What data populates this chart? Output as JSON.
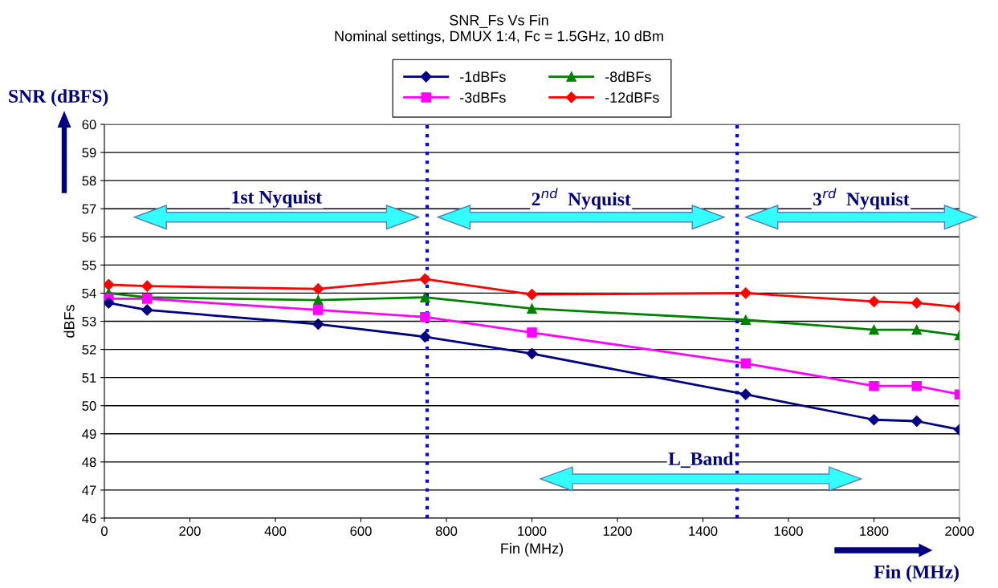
{
  "chart_data": {
    "type": "line",
    "title": "SNR_Fs Vs Fin",
    "subtitle": "Nominal settings, DMUX 1:4, Fc = 1.5GHz, 10 dBm",
    "xlabel": "Fin (MHz)",
    "ylabel": "dBFs",
    "x": [
      10,
      100,
      500,
      750,
      1000,
      1500,
      1800,
      1900,
      2000
    ],
    "series": [
      {
        "name": "-1dBFs",
        "color": "#000080",
        "marker": "diamond",
        "values": [
          53.65,
          53.4,
          52.9,
          52.45,
          51.85,
          50.4,
          49.5,
          49.45,
          49.15
        ]
      },
      {
        "name": "-3dBFs",
        "color": "#ff00ff",
        "marker": "square",
        "values": [
          53.8,
          53.8,
          53.4,
          53.15,
          52.6,
          51.5,
          50.7,
          50.7,
          50.4
        ]
      },
      {
        "name": "-8dBFs",
        "color": "#008000",
        "marker": "triangle",
        "values": [
          54.0,
          53.85,
          53.75,
          53.85,
          53.45,
          53.05,
          52.7,
          52.7,
          52.5
        ]
      },
      {
        "name": "-12dBFs",
        "color": "#ff0000",
        "marker": "diamond",
        "values": [
          54.3,
          54.25,
          54.15,
          54.5,
          53.95,
          54.0,
          53.7,
          53.65,
          53.5
        ]
      }
    ],
    "xlim": [
      0,
      2000
    ],
    "xticks": [
      0,
      200,
      400,
      600,
      800,
      1000,
      1200,
      1400,
      1600,
      1800,
      2000
    ],
    "ylim": [
      46,
      60
    ],
    "yticks": [
      46,
      47,
      48,
      49,
      50,
      51,
      52,
      53,
      54,
      55,
      56,
      57,
      58,
      59,
      60
    ],
    "grid": "y",
    "legend": "top",
    "ref_lines": [
      {
        "axis": "x",
        "value": 755,
        "color": "#0000ff",
        "line_style": "dotted"
      },
      {
        "axis": "x",
        "value": 1480,
        "color": "#0000ff",
        "line_style": "dotted"
      }
    ],
    "annotations": [
      "1st Nyquist",
      "2$^{nd}$  Nyquist",
      "3$^{rd}$  Nyquist",
      "L_Band",
      "SNR (dBFS)",
      "Fin (MHz)"
    ]
  }
}
